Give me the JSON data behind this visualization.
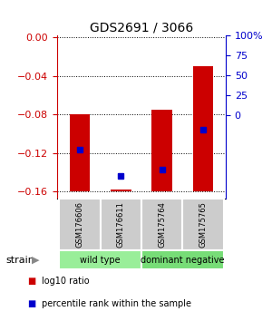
{
  "title": "GDS2691 / 3066",
  "samples": [
    "GSM176606",
    "GSM176611",
    "GSM175764",
    "GSM175765"
  ],
  "log10_ratio": [
    -0.08,
    -0.158,
    -0.075,
    -0.03
  ],
  "percentile_rank": [
    27,
    10,
    14,
    40
  ],
  "bar_bottom": -0.16,
  "ylim_left": [
    -0.168,
    0.002
  ],
  "ylim_right": [
    -0.5,
    105
  ],
  "yticks_left": [
    0,
    -0.04,
    -0.08,
    -0.12,
    -0.16
  ],
  "yticks_right": [
    0,
    25,
    50,
    75,
    100
  ],
  "groups": [
    {
      "label": "wild type",
      "indices": [
        0,
        1
      ],
      "color": "#99ee99"
    },
    {
      "label": "dominant negative",
      "indices": [
        2,
        3
      ],
      "color": "#77dd77"
    }
  ],
  "bar_color": "#cc0000",
  "blue_color": "#0000cc",
  "label_box_color": "#cccccc",
  "right_axis_color": "#0000cc",
  "left_axis_color": "#cc0000",
  "legend_red_label": "log10 ratio",
  "legend_blue_label": "percentile rank within the sample",
  "strain_label": "strain"
}
